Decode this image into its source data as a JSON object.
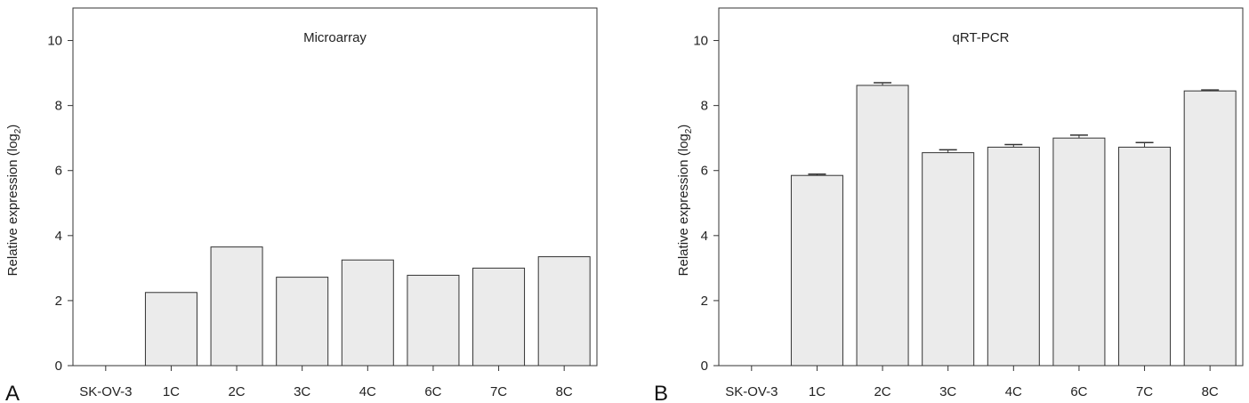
{
  "chart_data": [
    {
      "type": "bar",
      "panel_letter": "A",
      "title": "Microarray",
      "ylabel": "Relative expression (log",
      "ylabel_sub": "2",
      "ylabel_close": ")",
      "ylim": [
        0,
        11
      ],
      "yticks": [
        0,
        2,
        4,
        6,
        8,
        10
      ],
      "grid": false,
      "categories": [
        "SK-OV-3",
        "1C",
        "2C",
        "3C",
        "4C",
        "6C",
        "7C",
        "8C"
      ],
      "values": [
        0,
        2.25,
        3.65,
        2.72,
        3.25,
        2.78,
        3.0,
        3.35
      ],
      "error": null,
      "bar_color": "#ebebeb"
    },
    {
      "type": "bar",
      "panel_letter": "B",
      "title": "qRT-PCR",
      "ylabel": "Relative expression (log",
      "ylabel_sub": "2",
      "ylabel_close": ")",
      "ylim": [
        0,
        11
      ],
      "yticks": [
        0,
        2,
        4,
        6,
        8,
        10
      ],
      "grid": false,
      "categories": [
        "SK-OV-3",
        "1C",
        "2C",
        "3C",
        "4C",
        "6C",
        "7C",
        "8C"
      ],
      "values": [
        0,
        5.85,
        8.62,
        6.55,
        6.72,
        7.0,
        6.72,
        8.45
      ],
      "error": [
        0,
        0.04,
        0.08,
        0.09,
        0.08,
        0.09,
        0.14,
        0.03
      ],
      "bar_color": "#ebebeb"
    }
  ]
}
